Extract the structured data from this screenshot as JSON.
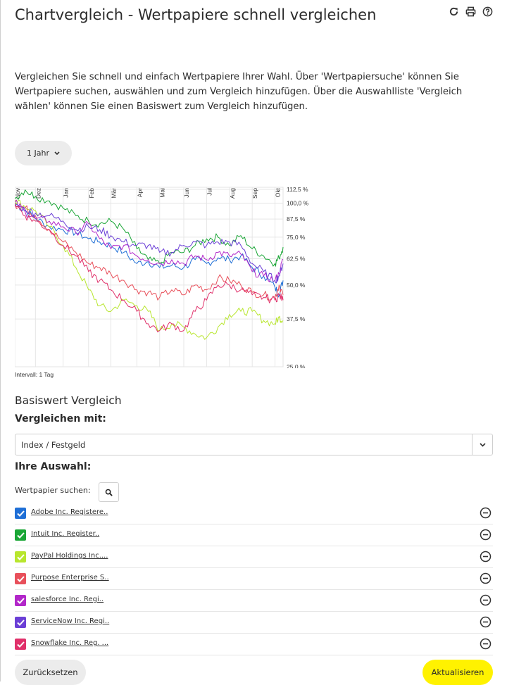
{
  "header": {
    "title": "Chartvergleich - Wertpapiere schnell vergleichen",
    "icons": [
      "refresh-icon",
      "print-icon",
      "help-icon"
    ]
  },
  "intro": "Vergleichen Sie schnell und einfach Wertpapiere Ihrer Wahl. Über 'Wertpapiersuche' können Sie Wertpapiere suchen, auswählen und zum Vergleich hinzufügen. Über die Auswahlliste 'Vergleich wählen' können Sie einen Basiswert zum Vergleich hinzufügen.",
  "period": {
    "label": "1 Jahr"
  },
  "chart_data": {
    "type": "line",
    "title": "",
    "xlabel": "",
    "ylabel": "",
    "log_scale": true,
    "grid": true,
    "ylim": [
      25,
      112.5
    ],
    "y_ticks": [
      112.5,
      100,
      87.5,
      75,
      62.5,
      50,
      37.5,
      25
    ],
    "y_tick_labels": [
      "112,5 %",
      "100,0 %",
      "87,5 %",
      "75,0 %",
      "62,5 %",
      "50,0 %",
      "37,5 %",
      "25,0 %"
    ],
    "x_ticks": [
      "Nov",
      "Dez",
      "Jan",
      "Feb",
      "Mär",
      "Apr",
      "Mai",
      "Jun",
      "Jul",
      "Aug",
      "Sep",
      "Okt"
    ],
    "x_months": [
      0,
      0.077,
      0.18,
      0.275,
      0.358,
      0.455,
      0.54,
      0.63,
      0.715,
      0.8,
      0.885,
      0.97,
      1.0
    ],
    "interval_label": "Intervall: 1 Tag",
    "series": [
      {
        "color": "#1f6fd6",
        "points": [
          [
            0,
            100
          ],
          [
            0.5,
            94
          ],
          [
            1,
            88
          ],
          [
            1.5,
            82
          ],
          [
            2,
            80
          ],
          [
            2.5,
            78
          ],
          [
            3,
            74
          ],
          [
            3.5,
            72
          ],
          [
            4,
            70
          ],
          [
            4.5,
            66
          ],
          [
            5,
            60
          ],
          [
            5.5,
            61
          ],
          [
            6,
            58
          ],
          [
            6.5,
            59
          ],
          [
            7,
            58
          ],
          [
            7.5,
            62
          ],
          [
            8,
            60
          ],
          [
            8.5,
            63
          ],
          [
            9,
            62
          ],
          [
            9.5,
            64
          ],
          [
            10,
            58
          ],
          [
            10.5,
            54
          ],
          [
            11,
            49
          ],
          [
            11.5,
            46
          ],
          [
            12,
            52
          ]
        ]
      },
      {
        "color": "#1aa636",
        "points": [
          [
            0,
            104
          ],
          [
            0.5,
            112
          ],
          [
            1,
            106
          ],
          [
            1.5,
            102
          ],
          [
            2,
            96
          ],
          [
            2.5,
            90
          ],
          [
            3,
            86
          ],
          [
            3.5,
            84
          ],
          [
            4,
            86
          ],
          [
            4.5,
            80
          ],
          [
            5,
            68
          ],
          [
            5.5,
            62
          ],
          [
            6,
            60
          ],
          [
            6.5,
            66
          ],
          [
            7,
            66
          ],
          [
            7.5,
            70
          ],
          [
            8,
            74
          ],
          [
            8.5,
            75
          ],
          [
            9,
            70
          ],
          [
            9.5,
            76
          ],
          [
            10,
            68
          ],
          [
            10.5,
            64
          ],
          [
            11,
            60
          ],
          [
            11.5,
            63
          ],
          [
            12,
            69
          ]
        ]
      },
      {
        "color": "#b8e62e",
        "points": [
          [
            0,
            103
          ],
          [
            0.5,
            97
          ],
          [
            1,
            94
          ],
          [
            1.5,
            82
          ],
          [
            2,
            70
          ],
          [
            2.5,
            58
          ],
          [
            3,
            48
          ],
          [
            3.5,
            42
          ],
          [
            4,
            40
          ],
          [
            4.5,
            44
          ],
          [
            5,
            42
          ],
          [
            5.5,
            40
          ],
          [
            6,
            34
          ],
          [
            6.5,
            36
          ],
          [
            7,
            35
          ],
          [
            7.5,
            33
          ],
          [
            8,
            32
          ],
          [
            8.5,
            35
          ],
          [
            9,
            39
          ],
          [
            9.5,
            40
          ],
          [
            10,
            40
          ],
          [
            10.5,
            37
          ],
          [
            11,
            36
          ],
          [
            11.5,
            38
          ],
          [
            12,
            37
          ]
        ]
      },
      {
        "color": "#e8505b",
        "points": [
          [
            0,
            99
          ],
          [
            0.5,
            96
          ],
          [
            1,
            90
          ],
          [
            1.5,
            80
          ],
          [
            2,
            72
          ],
          [
            2.5,
            66
          ],
          [
            3,
            60
          ],
          [
            3.5,
            58
          ],
          [
            4,
            55
          ],
          [
            4.5,
            52
          ],
          [
            5,
            48
          ],
          [
            5.5,
            47
          ],
          [
            6,
            45
          ],
          [
            6.5,
            48
          ],
          [
            7,
            46
          ],
          [
            7.5,
            50
          ],
          [
            8,
            48
          ],
          [
            8.5,
            53
          ],
          [
            9,
            52
          ],
          [
            9.5,
            50
          ],
          [
            10,
            47
          ],
          [
            10.5,
            46
          ],
          [
            11,
            45
          ],
          [
            11.5,
            50
          ],
          [
            12,
            46
          ]
        ]
      },
      {
        "color": "#b227c9",
        "points": [
          [
            0,
            101
          ],
          [
            0.5,
            93
          ],
          [
            1,
            88
          ],
          [
            1.5,
            86
          ],
          [
            2,
            82
          ],
          [
            2.5,
            78
          ],
          [
            3,
            84
          ],
          [
            3.5,
            74
          ],
          [
            4,
            68
          ],
          [
            4.5,
            70
          ],
          [
            5,
            64
          ],
          [
            5.5,
            62
          ],
          [
            6,
            60
          ],
          [
            6.5,
            62
          ],
          [
            7,
            60
          ],
          [
            7.5,
            64
          ],
          [
            8,
            62
          ],
          [
            8.5,
            66
          ],
          [
            9,
            64
          ],
          [
            9.5,
            65
          ],
          [
            10,
            56
          ],
          [
            10.5,
            54
          ],
          [
            11,
            52
          ],
          [
            11.5,
            55
          ],
          [
            12,
            62
          ]
        ]
      },
      {
        "color": "#6b3fd6",
        "points": [
          [
            0,
            98
          ],
          [
            0.5,
            95
          ],
          [
            1,
            92
          ],
          [
            1.5,
            90
          ],
          [
            2,
            86
          ],
          [
            2.5,
            80
          ],
          [
            3,
            82
          ],
          [
            3.5,
            80
          ],
          [
            4,
            76
          ],
          [
            4.5,
            72
          ],
          [
            5,
            70
          ],
          [
            5.5,
            70
          ],
          [
            6,
            66
          ],
          [
            6.5,
            66
          ],
          [
            7,
            70
          ],
          [
            7.5,
            72
          ],
          [
            8,
            70
          ],
          [
            8.5,
            72
          ],
          [
            9,
            72
          ],
          [
            9.5,
            70
          ],
          [
            10,
            60
          ],
          [
            10.5,
            56
          ],
          [
            11,
            52
          ],
          [
            11.5,
            54
          ],
          [
            12,
            60
          ]
        ]
      },
      {
        "color": "#e0306a",
        "points": [
          [
            0,
            100
          ],
          [
            0.5,
            90
          ],
          [
            1,
            86
          ],
          [
            1.5,
            80
          ],
          [
            2,
            70
          ],
          [
            2.5,
            64
          ],
          [
            3,
            56
          ],
          [
            3.5,
            52
          ],
          [
            4,
            48
          ],
          [
            4.5,
            44
          ],
          [
            5,
            40
          ],
          [
            5.5,
            36
          ],
          [
            6,
            34
          ],
          [
            6.5,
            36
          ],
          [
            7,
            34
          ],
          [
            7.5,
            40
          ],
          [
            8,
            44
          ],
          [
            8.5,
            50
          ],
          [
            9,
            50
          ],
          [
            9.5,
            48
          ],
          [
            10,
            46
          ],
          [
            10.5,
            45
          ],
          [
            11,
            44
          ],
          [
            11.5,
            46
          ],
          [
            12,
            44
          ]
        ]
      }
    ]
  },
  "basis": {
    "title": "Basiswert Vergleich",
    "compare_label": "Vergleichen mit:",
    "select_value": "Index / Festgeld"
  },
  "selection": {
    "title": "Ihre Auswahl:",
    "search_label": "Wertpapier suchen:",
    "items": [
      {
        "name": "Adobe Inc. Registere..",
        "color": "#1f6fd6"
      },
      {
        "name": "Intuit Inc. Register..",
        "color": "#1aa636"
      },
      {
        "name": "PayPal Holdings Inc....",
        "color": "#b8e62e"
      },
      {
        "name": "Purpose Enterprise S..",
        "color": "#e8505b"
      },
      {
        "name": "salesforce Inc. Regi..",
        "color": "#b227c9"
      },
      {
        "name": "ServiceNow Inc. Regi..",
        "color": "#6b3fd6"
      },
      {
        "name": "Snowflake Inc. Reg. ...",
        "color": "#e0306a"
      }
    ]
  },
  "footer": {
    "reset_label": "Zurücksetzen",
    "update_label": "Aktualisieren"
  }
}
